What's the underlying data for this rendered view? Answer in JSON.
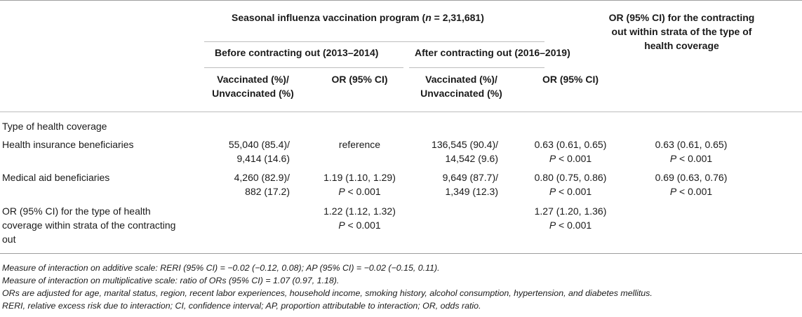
{
  "header": {
    "program": "Seasonal influenza vaccination program (",
    "program_n": "n",
    "program_eq": " = 2,31,681)",
    "or_col_line1": "OR (95% CI) for the contracting",
    "or_col_line2": "out within strata of the type of",
    "or_col_line3": "health coverage",
    "before": "Before contracting out (2013–2014)",
    "after": "After contracting out (2016–2019)",
    "vacc_line1": "Vaccinated (%)/",
    "vacc_line2": "Unvaccinated (%)",
    "or_ci": "OR (95% CI)"
  },
  "rows": {
    "section": "Type of health coverage",
    "hib": {
      "label": "Health insurance beneficiaries",
      "before_vacc_1": "55,040 (85.4)/",
      "before_vacc_2": "9,414 (14.6)",
      "before_or": "reference",
      "after_vacc_1": "136,545 (90.4)/",
      "after_vacc_2": "14,542 (9.6)",
      "after_or_1": "0.63 (0.61, 0.65)",
      "after_or_p": "P",
      "after_or_2": " < 0.001",
      "strata_or_1": "0.63 (0.61, 0.65)",
      "strata_or_p": "P",
      "strata_or_2": " < 0.001"
    },
    "mab": {
      "label": "Medical aid beneficiaries",
      "before_vacc_1": "4,260 (82.9)/",
      "before_vacc_2": "882 (17.2)",
      "before_or_1": "1.19 (1.10, 1.29)",
      "before_or_p": "P",
      "before_or_2": " < 0.001",
      "after_vacc_1": "9,649 (87.7)/",
      "after_vacc_2": "1,349 (12.3)",
      "after_or_1": "0.80 (0.75, 0.86)",
      "after_or_p": "P",
      "after_or_2": " < 0.001",
      "strata_or_1": "0.69 (0.63, 0.76)",
      "strata_or_p": "P",
      "strata_or_2": " < 0.001"
    },
    "or_row": {
      "label_1": "OR (95% CI) for the type of health",
      "label_2": "coverage within strata of the contracting",
      "label_3": "out",
      "before_or_1": "1.22 (1.12, 1.32)",
      "before_or_p": "P",
      "before_or_2": " < 0.001",
      "after_or_1": "1.27 (1.20, 1.36)",
      "after_or_p": "P",
      "after_or_2": " < 0.001"
    }
  },
  "notes": [
    "Measure of interaction on additive scale: RERI (95% CI) = −0.02 (−0.12, 0.08); AP (95% CI) = −0.02 (−0.15, 0.11).",
    "Measure of interaction on multiplicative scale: ratio of ORs (95% CI) = 1.07 (0.97, 1.18).",
    "ORs are adjusted for age, marital status, region, recent labor experiences, household income, smoking history, alcohol consumption, hypertension, and diabetes mellitus.",
    "RERI, relative excess risk due to interaction; CI, confidence interval; AP, proportion attributable to interaction; OR, odds ratio."
  ]
}
